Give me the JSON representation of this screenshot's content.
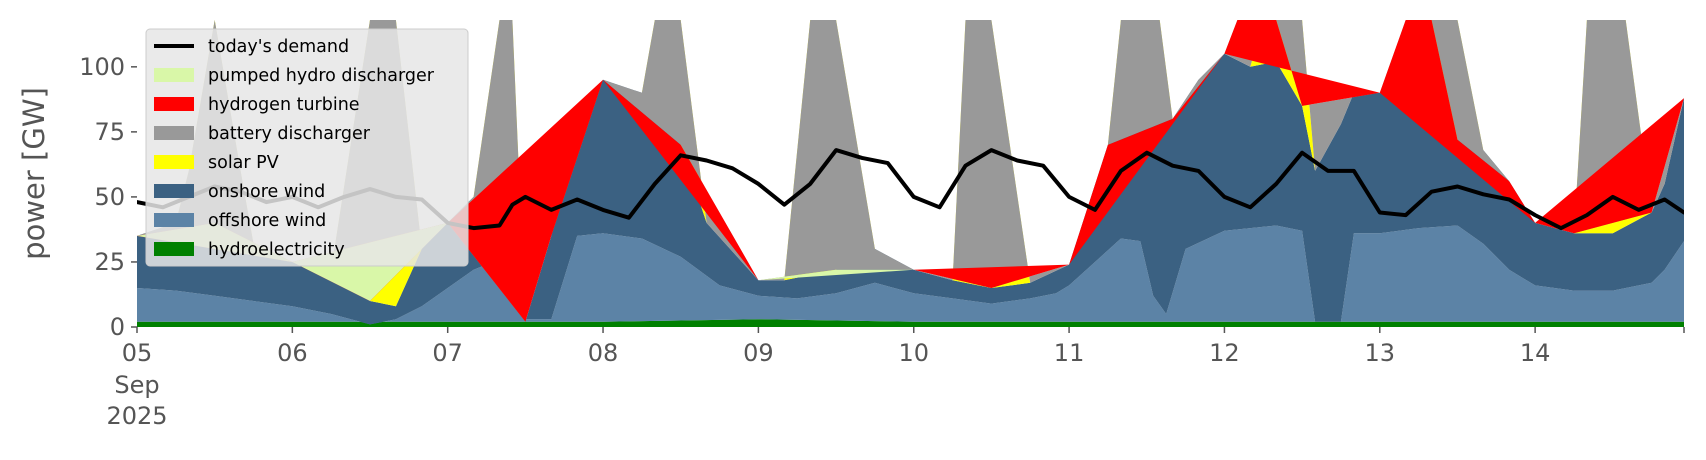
{
  "chart_data": {
    "type": "area",
    "ylabel": "power [GW]",
    "ylim": [
      0,
      118
    ],
    "xlim": [
      0,
      239
    ],
    "x_unit": "hours since 05 Sep 2025 00:00",
    "grid": false,
    "legend_placement": "top-left",
    "x_ticks": [
      {
        "x": 0,
        "label": "05",
        "sub": [
          "Sep",
          "2025"
        ]
      },
      {
        "x": 24,
        "label": "06"
      },
      {
        "x": 48,
        "label": "07"
      },
      {
        "x": 72,
        "label": "08"
      },
      {
        "x": 96,
        "label": "09"
      },
      {
        "x": 120,
        "label": "10"
      },
      {
        "x": 144,
        "label": "11"
      },
      {
        "x": 168,
        "label": "12"
      },
      {
        "x": 192,
        "label": "13"
      },
      {
        "x": 216,
        "label": "14"
      }
    ],
    "y_ticks": [
      0,
      25,
      50,
      75,
      100
    ],
    "series_order_bottom_to_top": [
      "hydroelectricity",
      "offshore wind",
      "onshore wind",
      "solar PV",
      "battery discharger",
      "hydrogen turbine",
      "pumped hydro discharger"
    ],
    "legend": [
      {
        "label": "today's demand",
        "color": "#000000",
        "kind": "line"
      },
      {
        "label": "pumped hydro discharger",
        "color": "#d9f7a8",
        "kind": "patch"
      },
      {
        "label": "hydrogen turbine",
        "color": "#ff0000",
        "kind": "patch"
      },
      {
        "label": "battery discharger",
        "color": "#999999",
        "kind": "patch"
      },
      {
        "label": "solar PV",
        "color": "#ffff00",
        "kind": "patch"
      },
      {
        "label": "onshore wind",
        "color": "#3b6182",
        "kind": "patch"
      },
      {
        "label": "offshore wind",
        "color": "#5c83a6",
        "kind": "patch"
      },
      {
        "label": "hydroelectricity",
        "color": "#008000",
        "kind": "patch"
      }
    ],
    "series": [
      {
        "name": "hydroelectricity",
        "color": "#008000",
        "points": [
          [
            0,
            2
          ],
          [
            24,
            2
          ],
          [
            48,
            2
          ],
          [
            72,
            2
          ],
          [
            96,
            3
          ],
          [
            120,
            2
          ],
          [
            144,
            2
          ],
          [
            168,
            2
          ],
          [
            192,
            2
          ],
          [
            216,
            2
          ],
          [
            239,
            2
          ]
        ]
      },
      {
        "name": "offshore wind",
        "color": "#5c83a6",
        "points": [
          [
            0,
            15
          ],
          [
            6,
            14
          ],
          [
            12,
            12
          ],
          [
            18,
            10
          ],
          [
            24,
            8
          ],
          [
            30,
            5
          ],
          [
            36,
            1
          ],
          [
            40,
            3
          ],
          [
            44,
            8
          ],
          [
            48,
            15
          ],
          [
            52,
            22
          ],
          [
            56,
            26
          ],
          [
            58,
            10
          ],
          [
            60,
            3
          ],
          [
            64,
            3
          ],
          [
            68,
            35
          ],
          [
            72,
            36
          ],
          [
            78,
            34
          ],
          [
            84,
            27
          ],
          [
            90,
            16
          ],
          [
            96,
            12
          ],
          [
            102,
            11
          ],
          [
            108,
            13
          ],
          [
            114,
            17
          ],
          [
            120,
            13
          ],
          [
            126,
            11
          ],
          [
            132,
            9
          ],
          [
            138,
            11
          ],
          [
            142,
            13
          ],
          [
            144,
            16
          ],
          [
            148,
            25
          ],
          [
            152,
            34
          ],
          [
            155,
            33
          ],
          [
            157,
            12
          ],
          [
            159,
            5
          ],
          [
            162,
            30
          ],
          [
            168,
            37
          ],
          [
            172,
            38
          ],
          [
            176,
            39
          ],
          [
            180,
            37
          ],
          [
            182,
            2
          ],
          [
            186,
            2
          ],
          [
            188,
            36
          ],
          [
            192,
            36
          ],
          [
            198,
            38
          ],
          [
            204,
            39
          ],
          [
            208,
            32
          ],
          [
            212,
            22
          ],
          [
            216,
            16
          ],
          [
            222,
            14
          ],
          [
            228,
            14
          ],
          [
            234,
            17
          ],
          [
            236,
            22
          ],
          [
            239,
            33
          ]
        ]
      },
      {
        "name": "onshore wind",
        "color": "#3b6182",
        "points": [
          [
            0,
            35
          ],
          [
            6,
            40
          ],
          [
            12,
            40
          ],
          [
            18,
            32
          ],
          [
            24,
            25
          ],
          [
            30,
            22
          ],
          [
            36,
            10
          ],
          [
            40,
            8
          ],
          [
            44,
            30
          ],
          [
            48,
            40
          ],
          [
            52,
            50
          ],
          [
            56,
            60
          ],
          [
            58,
            22
          ],
          [
            60,
            2
          ],
          [
            64,
            35
          ],
          [
            68,
            80
          ],
          [
            72,
            95
          ],
          [
            78,
            90
          ],
          [
            84,
            70
          ],
          [
            88,
            40
          ],
          [
            96,
            18
          ],
          [
            100,
            18
          ],
          [
            108,
            22
          ],
          [
            114,
            30
          ],
          [
            120,
            22
          ],
          [
            126,
            18
          ],
          [
            132,
            15
          ],
          [
            138,
            17
          ],
          [
            144,
            24
          ],
          [
            150,
            70
          ],
          [
            156,
            85
          ],
          [
            160,
            80
          ],
          [
            164,
            95
          ],
          [
            168,
            105
          ],
          [
            172,
            100
          ],
          [
            176,
            102
          ],
          [
            180,
            85
          ],
          [
            182,
            60
          ],
          [
            186,
            78
          ],
          [
            188,
            90
          ],
          [
            192,
            90
          ],
          [
            198,
            80
          ],
          [
            204,
            72
          ],
          [
            208,
            68
          ],
          [
            212,
            56
          ],
          [
            216,
            40
          ],
          [
            222,
            36
          ],
          [
            228,
            36
          ],
          [
            234,
            44
          ],
          [
            236,
            55
          ],
          [
            239,
            88
          ]
        ]
      },
      {
        "name": "solar PV",
        "color": "#ffff00",
        "points": [
          [
            0,
            35
          ],
          [
            6,
            40
          ],
          [
            8,
            60
          ],
          [
            12,
            118
          ],
          [
            16,
            60
          ],
          [
            18,
            32
          ],
          [
            24,
            25
          ],
          [
            30,
            22
          ],
          [
            36,
            118
          ],
          [
            40,
            118
          ],
          [
            44,
            30
          ],
          [
            48,
            40
          ],
          [
            52,
            50
          ],
          [
            56,
            118
          ],
          [
            58,
            118
          ],
          [
            60,
            2
          ],
          [
            64,
            35
          ],
          [
            68,
            80
          ],
          [
            72,
            95
          ],
          [
            78,
            90
          ],
          [
            80,
            118
          ],
          [
            84,
            118
          ],
          [
            88,
            40
          ],
          [
            96,
            18
          ],
          [
            100,
            18
          ],
          [
            104,
            118
          ],
          [
            108,
            118
          ],
          [
            114,
            30
          ],
          [
            120,
            22
          ],
          [
            126,
            18
          ],
          [
            128,
            118
          ],
          [
            132,
            118
          ],
          [
            138,
            17
          ],
          [
            144,
            24
          ],
          [
            150,
            70
          ],
          [
            152,
            118
          ],
          [
            158,
            118
          ],
          [
            160,
            80
          ],
          [
            164,
            95
          ],
          [
            168,
            105
          ],
          [
            172,
            100
          ],
          [
            174,
            118
          ],
          [
            180,
            118
          ],
          [
            182,
            60
          ],
          [
            186,
            78
          ],
          [
            188,
            90
          ],
          [
            192,
            90
          ],
          [
            198,
            80
          ],
          [
            200,
            118
          ],
          [
            204,
            118
          ],
          [
            208,
            68
          ],
          [
            212,
            56
          ],
          [
            216,
            40
          ],
          [
            222,
            36
          ],
          [
            224,
            118
          ],
          [
            230,
            118
          ],
          [
            234,
            44
          ],
          [
            236,
            55
          ],
          [
            239,
            88
          ]
        ]
      },
      {
        "name": "battery discharger",
        "color": "#999999",
        "points": [
          [
            0,
            35
          ],
          [
            24,
            25
          ],
          [
            48,
            40
          ],
          [
            60,
            2
          ],
          [
            64,
            35
          ],
          [
            72,
            95
          ],
          [
            84,
            70
          ],
          [
            96,
            18
          ],
          [
            108,
            22
          ],
          [
            120,
            22
          ],
          [
            132,
            15
          ],
          [
            144,
            24
          ],
          [
            150,
            70
          ],
          [
            160,
            80
          ],
          [
            168,
            105
          ],
          [
            170,
            118
          ],
          [
            176,
            118
          ],
          [
            180,
            85
          ],
          [
            192,
            90
          ],
          [
            196,
            118
          ],
          [
            200,
            118
          ],
          [
            204,
            72
          ],
          [
            212,
            56
          ],
          [
            216,
            40
          ],
          [
            222,
            36
          ],
          [
            234,
            44
          ],
          [
            239,
            88
          ]
        ]
      },
      {
        "name": "hydrogen turbine",
        "color": "#ff0000",
        "points": [
          [
            0,
            35
          ],
          [
            12,
            40
          ],
          [
            24,
            25
          ],
          [
            36,
            10
          ],
          [
            48,
            40
          ],
          [
            72,
            95
          ],
          [
            96,
            18
          ],
          [
            108,
            22
          ],
          [
            120,
            22
          ],
          [
            144,
            24
          ],
          [
            168,
            105
          ],
          [
            192,
            90
          ],
          [
            216,
            40
          ],
          [
            239,
            88
          ]
        ]
      },
      {
        "name": "pumped hydro discharger",
        "color": "#d9f7a8",
        "points": [
          [
            0,
            35
          ],
          [
            24,
            25
          ],
          [
            48,
            40
          ],
          [
            72,
            95
          ],
          [
            96,
            18
          ],
          [
            120,
            22
          ],
          [
            144,
            24
          ],
          [
            168,
            105
          ],
          [
            192,
            90
          ],
          [
            216,
            40
          ],
          [
            239,
            88
          ]
        ]
      },
      {
        "name": "today's demand",
        "color": "#000000",
        "kind": "line",
        "points": [
          [
            0,
            48
          ],
          [
            4,
            46
          ],
          [
            8,
            50
          ],
          [
            12,
            54
          ],
          [
            16,
            52
          ],
          [
            20,
            48
          ],
          [
            24,
            50
          ],
          [
            28,
            46
          ],
          [
            32,
            50
          ],
          [
            36,
            53
          ],
          [
            40,
            50
          ],
          [
            44,
            49
          ],
          [
            48,
            40
          ],
          [
            52,
            38
          ],
          [
            56,
            39
          ],
          [
            58,
            47
          ],
          [
            60,
            50
          ],
          [
            64,
            45
          ],
          [
            68,
            49
          ],
          [
            72,
            45
          ],
          [
            76,
            42
          ],
          [
            80,
            55
          ],
          [
            84,
            66
          ],
          [
            88,
            64
          ],
          [
            92,
            61
          ],
          [
            96,
            55
          ],
          [
            100,
            47
          ],
          [
            104,
            55
          ],
          [
            108,
            68
          ],
          [
            112,
            65
          ],
          [
            116,
            63
          ],
          [
            120,
            50
          ],
          [
            124,
            46
          ],
          [
            128,
            62
          ],
          [
            132,
            68
          ],
          [
            136,
            64
          ],
          [
            140,
            62
          ],
          [
            144,
            50
          ],
          [
            148,
            45
          ],
          [
            152,
            60
          ],
          [
            156,
            67
          ],
          [
            160,
            62
          ],
          [
            164,
            60
          ],
          [
            168,
            50
          ],
          [
            172,
            46
          ],
          [
            176,
            55
          ],
          [
            180,
            67
          ],
          [
            184,
            60
          ],
          [
            188,
            60
          ],
          [
            192,
            44
          ],
          [
            196,
            43
          ],
          [
            200,
            52
          ],
          [
            204,
            54
          ],
          [
            208,
            51
          ],
          [
            212,
            49
          ],
          [
            216,
            43
          ],
          [
            220,
            38
          ],
          [
            224,
            43
          ],
          [
            228,
            50
          ],
          [
            232,
            45
          ],
          [
            236,
            49
          ],
          [
            239,
            44
          ]
        ]
      }
    ]
  }
}
